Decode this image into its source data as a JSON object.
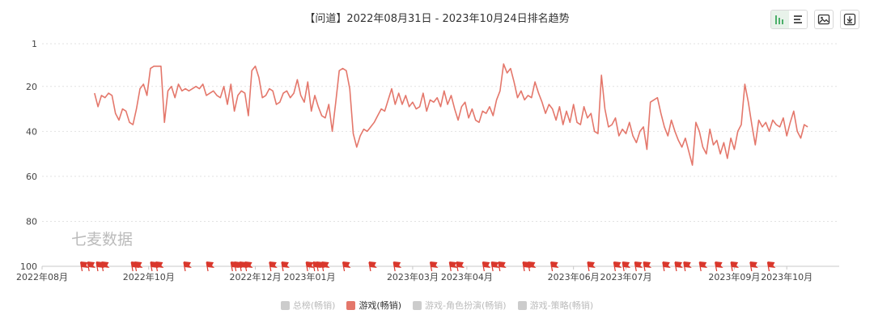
{
  "chart_data": {
    "type": "line",
    "title": "【问道】2022年08月31日 - 2023年10月24日排名趋势",
    "watermark": "七麦数据",
    "y_axis": {
      "inverted": true,
      "range": [
        1,
        100
      ],
      "ticks": [
        "1",
        "20",
        "40",
        "60",
        "80",
        "100"
      ]
    },
    "x_axis": {
      "range": [
        "2022-08-01",
        "2023-10-31"
      ],
      "ticks": [
        {
          "label": "2022年08月",
          "date": "2022-08-01"
        },
        {
          "label": "2022年10月",
          "date": "2022-10-01"
        },
        {
          "label": "2022年12月",
          "date": "2022-12-01"
        },
        {
          "label": "2023年01月",
          "date": "2023-01-01"
        },
        {
          "label": "2023年03月",
          "date": "2023-03-01"
        },
        {
          "label": "2023年04月",
          "date": "2023-04-01"
        },
        {
          "label": "2023年06月",
          "date": "2023-06-01"
        },
        {
          "label": "2023年07月",
          "date": "2023-07-01"
        },
        {
          "label": "2023年09月",
          "date": "2023-09-01"
        },
        {
          "label": "2023年10月",
          "date": "2023-10-01"
        }
      ]
    },
    "grid": "horizontal-dashed",
    "legend_position": "bottom-center",
    "legend": [
      {
        "label": "总榜(畅销)",
        "active": false,
        "color": "#cccccc"
      },
      {
        "label": "游戏(畅销)",
        "active": true,
        "color": "#e4776b"
      },
      {
        "label": "游戏-角色扮演(畅销)",
        "active": false,
        "color": "#cccccc"
      },
      {
        "label": "游戏-策略(畅销)",
        "active": false,
        "color": "#cccccc"
      }
    ],
    "series": [
      {
        "color": "#e4776b",
        "points": [
          [
            "2022-08-31",
            23
          ],
          [
            "2022-09-02",
            29
          ],
          [
            "2022-09-04",
            24
          ],
          [
            "2022-09-06",
            25
          ],
          [
            "2022-09-08",
            23
          ],
          [
            "2022-09-10",
            24
          ],
          [
            "2022-09-12",
            32
          ],
          [
            "2022-09-14",
            35
          ],
          [
            "2022-09-16",
            30
          ],
          [
            "2022-09-18",
            31
          ],
          [
            "2022-09-20",
            36
          ],
          [
            "2022-09-22",
            37
          ],
          [
            "2022-09-24",
            30
          ],
          [
            "2022-09-26",
            21
          ],
          [
            "2022-09-28",
            19
          ],
          [
            "2022-09-30",
            24
          ],
          [
            "2022-10-02",
            12
          ],
          [
            "2022-10-04",
            11
          ],
          [
            "2022-10-06",
            11
          ],
          [
            "2022-10-08",
            11
          ],
          [
            "2022-10-10",
            36
          ],
          [
            "2022-10-12",
            22
          ],
          [
            "2022-10-14",
            20
          ],
          [
            "2022-10-16",
            25
          ],
          [
            "2022-10-18",
            19
          ],
          [
            "2022-10-20",
            22
          ],
          [
            "2022-10-22",
            21
          ],
          [
            "2022-10-24",
            22
          ],
          [
            "2022-10-26",
            21
          ],
          [
            "2022-10-28",
            20
          ],
          [
            "2022-10-30",
            21
          ],
          [
            "2022-11-01",
            19
          ],
          [
            "2022-11-03",
            24
          ],
          [
            "2022-11-05",
            23
          ],
          [
            "2022-11-07",
            22
          ],
          [
            "2022-11-09",
            24
          ],
          [
            "2022-11-11",
            25
          ],
          [
            "2022-11-13",
            20
          ],
          [
            "2022-11-15",
            28
          ],
          [
            "2022-11-17",
            19
          ],
          [
            "2022-11-19",
            31
          ],
          [
            "2022-11-21",
            24
          ],
          [
            "2022-11-23",
            22
          ],
          [
            "2022-11-25",
            23
          ],
          [
            "2022-11-27",
            33
          ],
          [
            "2022-11-29",
            13
          ],
          [
            "2022-12-01",
            11
          ],
          [
            "2022-12-03",
            16
          ],
          [
            "2022-12-05",
            25
          ],
          [
            "2022-12-07",
            24
          ],
          [
            "2022-12-09",
            21
          ],
          [
            "2022-12-11",
            22
          ],
          [
            "2022-12-13",
            28
          ],
          [
            "2022-12-15",
            27
          ],
          [
            "2022-12-17",
            23
          ],
          [
            "2022-12-19",
            22
          ],
          [
            "2022-12-21",
            25
          ],
          [
            "2022-12-23",
            23
          ],
          [
            "2022-12-25",
            17
          ],
          [
            "2022-12-27",
            24
          ],
          [
            "2022-12-29",
            27
          ],
          [
            "2022-12-31",
            18
          ],
          [
            "2023-01-02",
            31
          ],
          [
            "2023-01-04",
            24
          ],
          [
            "2023-01-06",
            29
          ],
          [
            "2023-01-08",
            33
          ],
          [
            "2023-01-10",
            34
          ],
          [
            "2023-01-12",
            28
          ],
          [
            "2023-01-14",
            40
          ],
          [
            "2023-01-16",
            27
          ],
          [
            "2023-01-18",
            13
          ],
          [
            "2023-01-20",
            12
          ],
          [
            "2023-01-22",
            13
          ],
          [
            "2023-01-24",
            21
          ],
          [
            "2023-01-26",
            41
          ],
          [
            "2023-01-28",
            47
          ],
          [
            "2023-01-30",
            42
          ],
          [
            "2023-02-01",
            39
          ],
          [
            "2023-02-03",
            40
          ],
          [
            "2023-02-05",
            38
          ],
          [
            "2023-02-07",
            36
          ],
          [
            "2023-02-09",
            33
          ],
          [
            "2023-02-11",
            30
          ],
          [
            "2023-02-13",
            31
          ],
          [
            "2023-02-15",
            26
          ],
          [
            "2023-02-17",
            21
          ],
          [
            "2023-02-19",
            28
          ],
          [
            "2023-02-21",
            23
          ],
          [
            "2023-02-23",
            28
          ],
          [
            "2023-02-25",
            24
          ],
          [
            "2023-02-27",
            29
          ],
          [
            "2023-03-01",
            27
          ],
          [
            "2023-03-03",
            30
          ],
          [
            "2023-03-05",
            29
          ],
          [
            "2023-03-07",
            23
          ],
          [
            "2023-03-09",
            31
          ],
          [
            "2023-03-11",
            26
          ],
          [
            "2023-03-13",
            27
          ],
          [
            "2023-03-15",
            25
          ],
          [
            "2023-03-17",
            29
          ],
          [
            "2023-03-19",
            22
          ],
          [
            "2023-03-21",
            28
          ],
          [
            "2023-03-23",
            24
          ],
          [
            "2023-03-25",
            30
          ],
          [
            "2023-03-27",
            35
          ],
          [
            "2023-03-29",
            29
          ],
          [
            "2023-03-31",
            27
          ],
          [
            "2023-04-02",
            34
          ],
          [
            "2023-04-04",
            30
          ],
          [
            "2023-04-06",
            35
          ],
          [
            "2023-04-08",
            36
          ],
          [
            "2023-04-10",
            31
          ],
          [
            "2023-04-12",
            32
          ],
          [
            "2023-04-14",
            29
          ],
          [
            "2023-04-16",
            33
          ],
          [
            "2023-04-18",
            26
          ],
          [
            "2023-04-20",
            22
          ],
          [
            "2023-04-22",
            10
          ],
          [
            "2023-04-24",
            14
          ],
          [
            "2023-04-26",
            12
          ],
          [
            "2023-04-28",
            18
          ],
          [
            "2023-04-30",
            25
          ],
          [
            "2023-05-02",
            22
          ],
          [
            "2023-05-04",
            26
          ],
          [
            "2023-05-06",
            24
          ],
          [
            "2023-05-08",
            25
          ],
          [
            "2023-05-10",
            18
          ],
          [
            "2023-05-12",
            23
          ],
          [
            "2023-05-14",
            27
          ],
          [
            "2023-05-16",
            32
          ],
          [
            "2023-05-18",
            28
          ],
          [
            "2023-05-20",
            30
          ],
          [
            "2023-05-22",
            35
          ],
          [
            "2023-05-24",
            29
          ],
          [
            "2023-05-26",
            37
          ],
          [
            "2023-05-28",
            31
          ],
          [
            "2023-05-30",
            36
          ],
          [
            "2023-06-01",
            28
          ],
          [
            "2023-06-03",
            36
          ],
          [
            "2023-06-05",
            37
          ],
          [
            "2023-06-07",
            29
          ],
          [
            "2023-06-09",
            34
          ],
          [
            "2023-06-11",
            32
          ],
          [
            "2023-06-13",
            40
          ],
          [
            "2023-06-15",
            41
          ],
          [
            "2023-06-17",
            15
          ],
          [
            "2023-06-19",
            30
          ],
          [
            "2023-06-21",
            38
          ],
          [
            "2023-06-23",
            37
          ],
          [
            "2023-06-25",
            34
          ],
          [
            "2023-06-27",
            42
          ],
          [
            "2023-06-29",
            39
          ],
          [
            "2023-07-01",
            41
          ],
          [
            "2023-07-03",
            36
          ],
          [
            "2023-07-05",
            42
          ],
          [
            "2023-07-07",
            45
          ],
          [
            "2023-07-09",
            40
          ],
          [
            "2023-07-11",
            38
          ],
          [
            "2023-07-13",
            48
          ],
          [
            "2023-07-15",
            27
          ],
          [
            "2023-07-17",
            26
          ],
          [
            "2023-07-19",
            25
          ],
          [
            "2023-07-21",
            32
          ],
          [
            "2023-07-23",
            38
          ],
          [
            "2023-07-25",
            42
          ],
          [
            "2023-07-27",
            35
          ],
          [
            "2023-07-29",
            40
          ],
          [
            "2023-07-31",
            44
          ],
          [
            "2023-08-02",
            47
          ],
          [
            "2023-08-04",
            43
          ],
          [
            "2023-08-06",
            49
          ],
          [
            "2023-08-08",
            55
          ],
          [
            "2023-08-10",
            36
          ],
          [
            "2023-08-12",
            40
          ],
          [
            "2023-08-14",
            47
          ],
          [
            "2023-08-16",
            50
          ],
          [
            "2023-08-18",
            39
          ],
          [
            "2023-08-20",
            46
          ],
          [
            "2023-08-22",
            44
          ],
          [
            "2023-08-24",
            50
          ],
          [
            "2023-08-26",
            45
          ],
          [
            "2023-08-28",
            52
          ],
          [
            "2023-08-30",
            43
          ],
          [
            "2023-09-01",
            48
          ],
          [
            "2023-09-03",
            40
          ],
          [
            "2023-09-05",
            37
          ],
          [
            "2023-09-07",
            19
          ],
          [
            "2023-09-09",
            27
          ],
          [
            "2023-09-11",
            37
          ],
          [
            "2023-09-13",
            46
          ],
          [
            "2023-09-15",
            35
          ],
          [
            "2023-09-17",
            38
          ],
          [
            "2023-09-19",
            36
          ],
          [
            "2023-09-21",
            40
          ],
          [
            "2023-09-23",
            35
          ],
          [
            "2023-09-25",
            37
          ],
          [
            "2023-09-27",
            38
          ],
          [
            "2023-09-29",
            34
          ],
          [
            "2023-10-01",
            42
          ],
          [
            "2023-10-03",
            36
          ],
          [
            "2023-10-05",
            31
          ],
          [
            "2023-10-07",
            40
          ],
          [
            "2023-10-09",
            43
          ],
          [
            "2023-10-11",
            37
          ],
          [
            "2023-10-13",
            38
          ]
        ]
      }
    ],
    "event_flags": {
      "color": "#d9372c",
      "dates": [
        "2022-08-23",
        "2022-08-27",
        "2022-09-01",
        "2022-09-04",
        "2022-09-21",
        "2022-09-23",
        "2022-10-02",
        "2022-10-05",
        "2022-10-21",
        "2022-11-03",
        "2022-11-17",
        "2022-11-19",
        "2022-11-22",
        "2022-11-25",
        "2022-12-09",
        "2022-12-16",
        "2022-12-30",
        "2023-01-03",
        "2023-01-05",
        "2023-01-08",
        "2023-01-20",
        "2023-02-04",
        "2023-02-18",
        "2023-03-11",
        "2023-03-22",
        "2023-03-26",
        "2023-04-10",
        "2023-04-15",
        "2023-04-19",
        "2023-05-03",
        "2023-05-06",
        "2023-05-19",
        "2023-06-09",
        "2023-06-24",
        "2023-06-29",
        "2023-07-06",
        "2023-07-11",
        "2023-07-22",
        "2023-07-29",
        "2023-08-03",
        "2023-08-12",
        "2023-08-21",
        "2023-08-30",
        "2023-09-10",
        "2023-09-20"
      ]
    }
  },
  "toolbar": {
    "view_buttons": [
      {
        "icon": "bar-chart-icon",
        "active": true
      },
      {
        "icon": "list-icon",
        "active": false
      }
    ],
    "image_icon": "image-icon",
    "download_icon": "download-icon"
  }
}
